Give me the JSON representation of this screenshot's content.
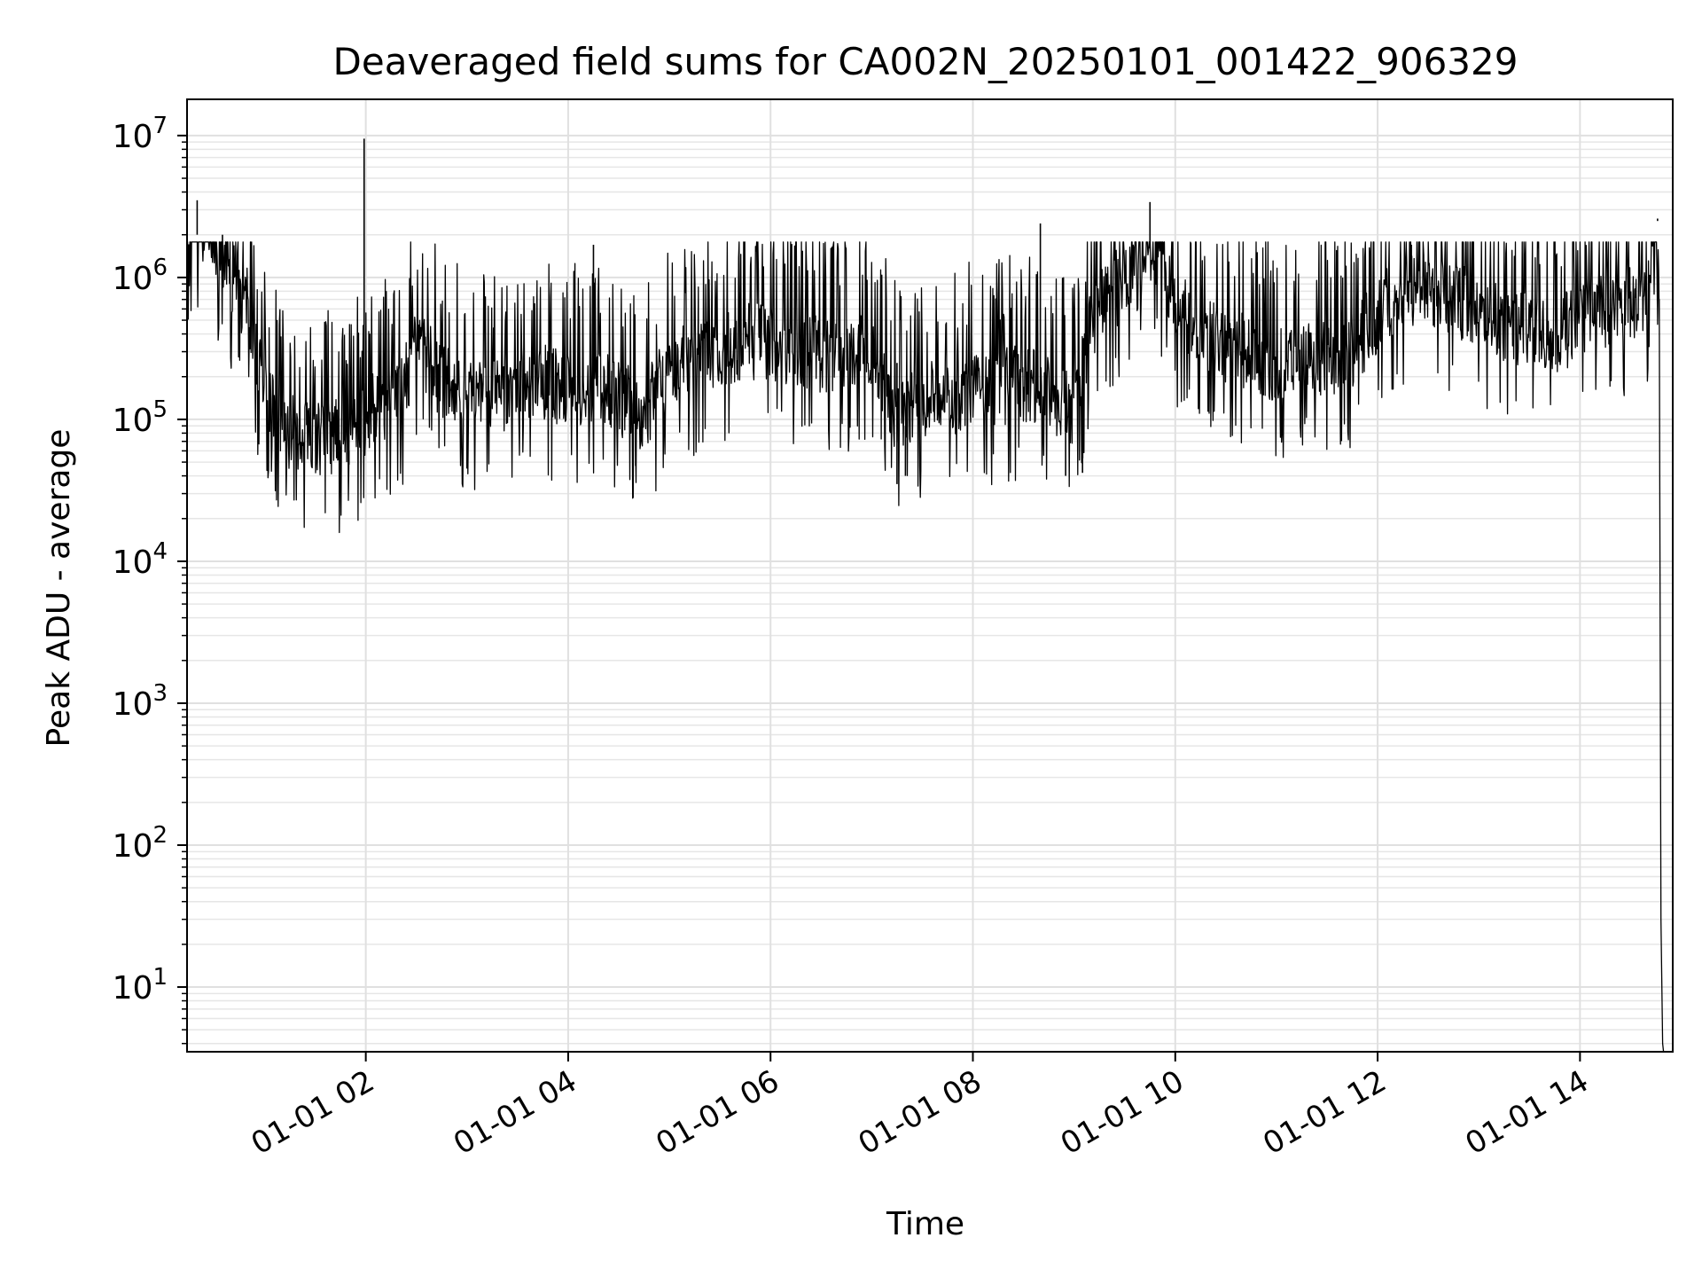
{
  "chart_data": {
    "type": "line",
    "title": "Deaveraged field sums for CA002N_20250101_001422_906329",
    "xlabel": "Time",
    "ylabel": "Peak ADU - average",
    "yscale": "log",
    "ylim": [
      3.5,
      18000000
    ],
    "xlim": [
      "2025-01-01 00:14",
      "2025-01-01 14:55"
    ],
    "grid": true,
    "line_color": "#000000",
    "x_ticks": [
      {
        "t": "2025-01-01 02:00",
        "label": "01-01 02"
      },
      {
        "t": "2025-01-01 04:00",
        "label": "01-01 04"
      },
      {
        "t": "2025-01-01 06:00",
        "label": "01-01 06"
      },
      {
        "t": "2025-01-01 08:00",
        "label": "01-01 08"
      },
      {
        "t": "2025-01-01 10:00",
        "label": "01-01 10"
      },
      {
        "t": "2025-01-01 12:00",
        "label": "01-01 12"
      },
      {
        "t": "2025-01-01 14:00",
        "label": "01-01 14"
      }
    ],
    "y_ticks": [
      {
        "value": 10,
        "base": "10",
        "exp": "1"
      },
      {
        "value": 100,
        "base": "10",
        "exp": "2"
      },
      {
        "value": 1000,
        "base": "10",
        "exp": "3"
      },
      {
        "value": 10000,
        "base": "10",
        "exp": "4"
      },
      {
        "value": 100000,
        "base": "10",
        "exp": "5"
      },
      {
        "value": 1000000,
        "base": "10",
        "exp": "6"
      },
      {
        "value": 10000000,
        "base": "10",
        "exp": "7"
      }
    ],
    "series": [
      {
        "x": [
          "2025-01-01 00:14",
          "2025-01-01 00:20",
          "2025-01-01 00:30",
          "2025-01-01 00:40",
          "2025-01-01 00:50",
          "2025-01-01 01:00",
          "2025-01-01 01:10",
          "2025-01-01 01:20",
          "2025-01-01 01:30",
          "2025-01-01 01:40",
          "2025-01-01 01:50",
          "2025-01-01 01:59",
          "2025-01-01 02:00",
          "2025-01-01 02:10",
          "2025-01-01 02:20",
          "2025-01-01 02:30",
          "2025-01-01 02:45",
          "2025-01-01 03:00",
          "2025-01-01 03:15",
          "2025-01-01 03:30",
          "2025-01-01 03:45",
          "2025-01-01 04:00",
          "2025-01-01 04:15",
          "2025-01-01 04:30",
          "2025-01-01 04:45",
          "2025-01-01 05:00",
          "2025-01-01 05:15",
          "2025-01-01 05:30",
          "2025-01-01 05:45",
          "2025-01-01 06:00",
          "2025-01-01 06:15",
          "2025-01-01 06:30",
          "2025-01-01 06:45",
          "2025-01-01 07:00",
          "2025-01-01 07:15",
          "2025-01-01 07:30",
          "2025-01-01 07:45",
          "2025-01-01 08:00",
          "2025-01-01 08:15",
          "2025-01-01 08:30",
          "2025-01-01 08:45",
          "2025-01-01 09:00",
          "2025-01-01 09:10",
          "2025-01-01 09:20",
          "2025-01-01 09:30",
          "2025-01-01 09:40",
          "2025-01-01 09:50",
          "2025-01-01 10:00",
          "2025-01-01 10:15",
          "2025-01-01 10:30",
          "2025-01-01 10:45",
          "2025-01-01 11:00",
          "2025-01-01 11:15",
          "2025-01-01 11:30",
          "2025-01-01 11:45",
          "2025-01-01 12:00",
          "2025-01-01 12:15",
          "2025-01-01 12:30",
          "2025-01-01 12:45",
          "2025-01-01 13:00",
          "2025-01-01 13:15",
          "2025-01-01 13:30",
          "2025-01-01 13:45",
          "2025-01-01 14:00",
          "2025-01-01 14:15",
          "2025-01-01 14:30",
          "2025-01-01 14:40",
          "2025-01-01 14:45",
          "2025-01-01 14:47",
          "2025-01-01 14:48",
          "2025-01-01 14:49"
        ],
        "y": [
          2000000,
          2200000,
          1400000,
          900000,
          500000,
          120000,
          75000,
          65000,
          62000,
          60000,
          65000,
          80000,
          90000,
          95000,
          110000,
          300000,
          150000,
          130000,
          120000,
          140000,
          150000,
          130000,
          140000,
          120000,
          90000,
          180000,
          220000,
          250000,
          300000,
          280000,
          250000,
          240000,
          220000,
          250000,
          90000,
          110000,
          120000,
          130000,
          140000,
          150000,
          120000,
          90000,
          400000,
          600000,
          800000,
          1600000,
          1300000,
          500000,
          350000,
          280000,
          250000,
          200000,
          260000,
          220000,
          250000,
          450000,
          650000,
          700000,
          550000,
          500000,
          400000,
          350000,
          280000,
          450000,
          500000,
          550000,
          600000,
          2500000,
          700000,
          30,
          4
        ]
      }
    ],
    "spikes": [
      {
        "x": "2025-01-01 00:20",
        "y": 3500000
      },
      {
        "x": "2025-01-01 00:35",
        "y": 2000000
      },
      {
        "x": "2025-01-01 01:59",
        "y": 9500000
      },
      {
        "x": "2025-01-01 04:15",
        "y": 1700000
      },
      {
        "x": "2025-01-01 08:40",
        "y": 2400000
      },
      {
        "x": "2025-01-01 09:45",
        "y": 3400000
      },
      {
        "x": "2025-01-01 12:20",
        "y": 1700000
      },
      {
        "x": "2025-01-01 14:46",
        "y": 2600000
      }
    ],
    "dips": [
      {
        "x": "2025-01-01 07:15",
        "y": 35000
      },
      {
        "x": "2025-01-01 07:20",
        "y": 40000
      },
      {
        "x": "2025-01-01 08:55",
        "y": 40000
      },
      {
        "x": "2025-01-01 09:05",
        "y": 42000
      },
      {
        "x": "2025-01-01 03:00",
        "y": 45000
      },
      {
        "x": "2025-01-01 04:40",
        "y": 47000
      },
      {
        "x": "2025-01-01 01:50",
        "y": 48000
      }
    ]
  }
}
